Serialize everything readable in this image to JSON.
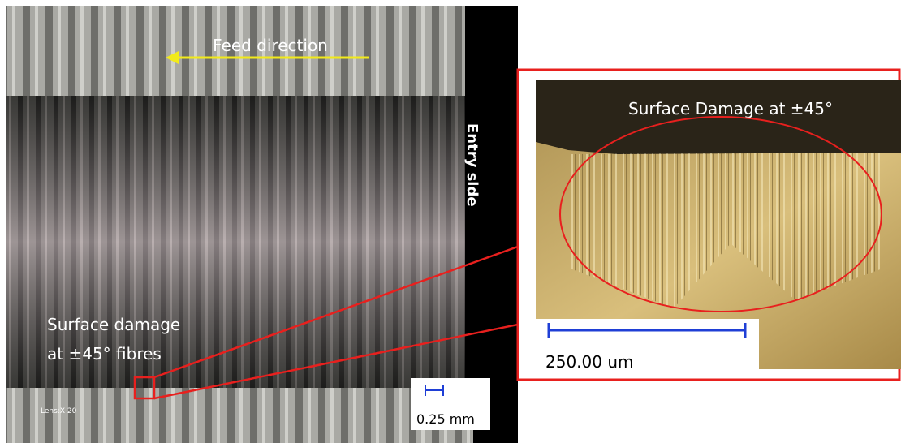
{
  "left_image": {
    "feed_direction": "Feed direction",
    "entry_side": "Entry side",
    "damage_label": [
      "Surface damage",
      "at ±45° fibres"
    ],
    "lens": "Lens:X 20",
    "scale": "0.25 mm"
  },
  "zoom_image": {
    "title": "Surface Damage at ±45°",
    "scale": "250.00 um"
  }
}
